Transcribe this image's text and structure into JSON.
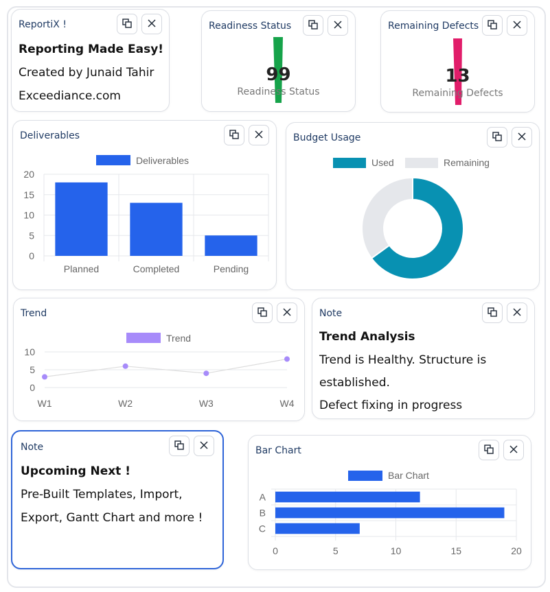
{
  "controls": {
    "duplicate_icon": "duplicate-icon",
    "close_icon": "close-icon"
  },
  "cards": {
    "reportix": {
      "title": "ReportiX !",
      "heading": "Reporting Made Easy!",
      "line1": "Created by Junaid Tahir",
      "line2": "Exceediance.com"
    },
    "readiness": {
      "title": "Readiness Status",
      "value": "99",
      "label": "Readiness Status",
      "color": "#16a34a"
    },
    "defects": {
      "title": "Remaining Defects",
      "value": "13",
      "label": "Remaining Defects",
      "color": "#e11d6a"
    },
    "deliverables": {
      "title": "Deliverables"
    },
    "budget": {
      "title": "Budget Usage"
    },
    "trend": {
      "title": "Trend"
    },
    "note1": {
      "title": "Note",
      "heading": "Trend Analysis",
      "line1": "Trend is Healthy. Structure is",
      "line2": "established.",
      "line3": "Defect fixing in progress"
    },
    "note2": {
      "title": "Note",
      "heading": "Upcoming Next !",
      "line1": "Pre-Built Templates, Import,",
      "line2": "Export, Gantt Chart and more !"
    },
    "barchart": {
      "title": "Bar Chart"
    }
  },
  "chart_data": [
    {
      "type": "bar",
      "id": "deliverables",
      "categories": [
        "Planned",
        "Completed",
        "Pending"
      ],
      "series": [
        {
          "name": "Deliverables",
          "values": [
            18,
            13,
            5
          ]
        }
      ],
      "ylim": [
        0,
        20
      ],
      "yticks": [
        0,
        5,
        10,
        15,
        20
      ],
      "grid": true,
      "legend": "top",
      "color": "#2563eb"
    },
    {
      "type": "pie",
      "id": "budget",
      "donut": true,
      "labels": [
        "Used",
        "Remaining"
      ],
      "values": [
        65,
        35
      ],
      "colors": [
        "#0891b2",
        "#e5e7eb"
      ],
      "legend": "top"
    },
    {
      "type": "line",
      "id": "trend",
      "categories": [
        "W1",
        "W2",
        "W3",
        "W4"
      ],
      "series": [
        {
          "name": "Trend",
          "values": [
            3,
            6,
            4,
            8
          ]
        }
      ],
      "ylim": [
        0,
        10
      ],
      "yticks": [
        0,
        5,
        10
      ],
      "grid": true,
      "legend": "top",
      "color": "#a78bfa"
    },
    {
      "type": "bar",
      "id": "barchart",
      "orientation": "horizontal",
      "categories": [
        "A",
        "B",
        "C"
      ],
      "series": [
        {
          "name": "Bar Chart",
          "values": [
            12,
            19,
            7
          ]
        }
      ],
      "xlim": [
        0,
        20
      ],
      "xticks": [
        0,
        5,
        10,
        15,
        20
      ],
      "grid": true,
      "legend": "top",
      "color": "#2563eb"
    }
  ]
}
